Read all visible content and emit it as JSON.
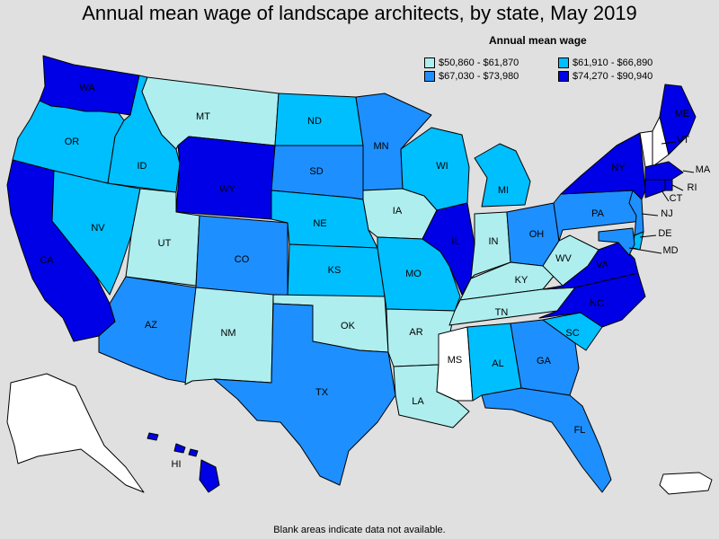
{
  "title": "Annual mean wage of landscape architects, by state, May 2019",
  "legend": {
    "title": "Annual mean wage",
    "items": [
      {
        "label": "$50,860 - $61,870",
        "color": "#aeeeee"
      },
      {
        "label": "$61,910 - $66,890",
        "color": "#00bfff"
      },
      {
        "label": "$67,030 - $73,980",
        "color": "#1e8fff"
      },
      {
        "label": "$74,270 - $90,940",
        "color": "#0000e6"
      }
    ],
    "no_data_color": "#ffffff"
  },
  "footnote": "Blank areas indicate data not available.",
  "states": [
    {
      "abbr": "WA",
      "bin": 3
    },
    {
      "abbr": "OR",
      "bin": 1
    },
    {
      "abbr": "CA",
      "bin": 3
    },
    {
      "abbr": "ID",
      "bin": 1
    },
    {
      "abbr": "NV",
      "bin": 1
    },
    {
      "abbr": "MT",
      "bin": 0
    },
    {
      "abbr": "WY",
      "bin": 3
    },
    {
      "abbr": "UT",
      "bin": 0
    },
    {
      "abbr": "CO",
      "bin": 2
    },
    {
      "abbr": "AZ",
      "bin": 2
    },
    {
      "abbr": "NM",
      "bin": 0
    },
    {
      "abbr": "ND",
      "bin": 1
    },
    {
      "abbr": "SD",
      "bin": 2
    },
    {
      "abbr": "NE",
      "bin": 1
    },
    {
      "abbr": "KS",
      "bin": 1
    },
    {
      "abbr": "OK",
      "bin": 0
    },
    {
      "abbr": "TX",
      "bin": 2
    },
    {
      "abbr": "MN",
      "bin": 2
    },
    {
      "abbr": "IA",
      "bin": 0
    },
    {
      "abbr": "MO",
      "bin": 1
    },
    {
      "abbr": "AR",
      "bin": 0
    },
    {
      "abbr": "LA",
      "bin": 0
    },
    {
      "abbr": "WI",
      "bin": 1
    },
    {
      "abbr": "IL",
      "bin": 3
    },
    {
      "abbr": "MI",
      "bin": 1
    },
    {
      "abbr": "IN",
      "bin": 0
    },
    {
      "abbr": "OH",
      "bin": 2
    },
    {
      "abbr": "KY",
      "bin": 0
    },
    {
      "abbr": "TN",
      "bin": 0
    },
    {
      "abbr": "MS",
      "bin": null
    },
    {
      "abbr": "AL",
      "bin": 1
    },
    {
      "abbr": "GA",
      "bin": 2
    },
    {
      "abbr": "FL",
      "bin": 2
    },
    {
      "abbr": "SC",
      "bin": 1
    },
    {
      "abbr": "NC",
      "bin": 3
    },
    {
      "abbr": "VA",
      "bin": 3
    },
    {
      "abbr": "WV",
      "bin": 0
    },
    {
      "abbr": "PA",
      "bin": 2
    },
    {
      "abbr": "NY",
      "bin": 3
    },
    {
      "abbr": "VT",
      "bin": null
    },
    {
      "abbr": "NH",
      "bin": null
    },
    {
      "abbr": "ME",
      "bin": 3
    },
    {
      "abbr": "MA",
      "bin": 3
    },
    {
      "abbr": "RI",
      "bin": 3
    },
    {
      "abbr": "CT",
      "bin": 3
    },
    {
      "abbr": "NJ",
      "bin": 2
    },
    {
      "abbr": "DE",
      "bin": 1
    },
    {
      "abbr": "MD",
      "bin": 2
    },
    {
      "abbr": "AK",
      "bin": null
    },
    {
      "abbr": "HI",
      "bin": 3
    },
    {
      "abbr": "PR",
      "bin": null
    }
  ]
}
